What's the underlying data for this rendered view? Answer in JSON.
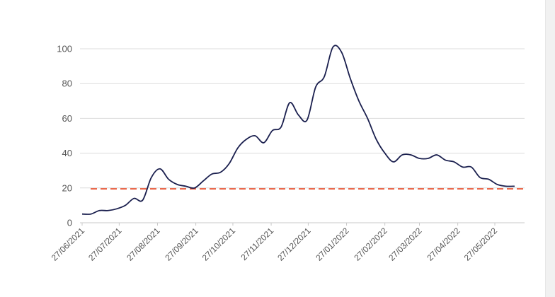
{
  "chart_data": {
    "type": "line",
    "title": "",
    "xlabel": "",
    "ylabel": "",
    "ylim": [
      0,
      105
    ],
    "yticks": [
      0,
      20,
      40,
      60,
      80,
      100
    ],
    "x_tick_labels": [
      "27/06/2021",
      "27/07/2021",
      "27/08/2021",
      "27/09/2021",
      "27/10/2021",
      "27/11/2021",
      "27/12/2021",
      "27/01/2022",
      "27/02/2022",
      "27/03/2022",
      "27/04/2022",
      "27/05/2022"
    ],
    "grid": true,
    "line_color": "#1a1f4e",
    "reference_line": {
      "y": 19.5,
      "color": "#e8401c",
      "style": "dashed"
    },
    "series": [
      {
        "x": [
          "2021-06-27",
          "2021-07-04",
          "2021-07-11",
          "2021-07-18",
          "2021-07-25",
          "2021-08-01",
          "2021-08-08",
          "2021-08-15",
          "2021-08-22",
          "2021-08-29",
          "2021-09-05",
          "2021-09-12",
          "2021-09-19",
          "2021-09-26",
          "2021-10-03",
          "2021-10-10",
          "2021-10-17",
          "2021-10-24",
          "2021-10-31",
          "2021-11-07",
          "2021-11-14",
          "2021-11-21",
          "2021-11-28",
          "2021-12-05",
          "2021-12-12",
          "2021-12-19",
          "2021-12-26",
          "2022-01-02",
          "2022-01-09",
          "2022-01-16",
          "2022-01-23",
          "2022-01-30",
          "2022-02-06",
          "2022-02-13",
          "2022-02-20",
          "2022-02-27",
          "2022-03-06",
          "2022-03-13",
          "2022-03-20",
          "2022-03-27",
          "2022-04-03",
          "2022-04-10",
          "2022-04-17",
          "2022-04-24",
          "2022-05-01",
          "2022-05-08",
          "2022-05-15",
          "2022-05-22",
          "2022-05-29",
          "2022-06-05",
          "2022-06-12"
        ],
        "values": [
          5,
          5,
          7,
          7,
          8,
          10,
          14,
          13,
          26,
          31,
          25,
          22,
          21,
          20,
          24,
          28,
          29,
          34,
          43,
          48,
          50,
          46,
          53,
          55,
          69,
          62,
          59,
          78,
          84,
          101,
          98,
          83,
          70,
          60,
          48,
          40,
          35,
          39,
          39,
          37,
          37,
          39,
          36,
          35,
          32,
          32,
          26,
          25,
          22,
          21,
          21
        ]
      }
    ]
  }
}
